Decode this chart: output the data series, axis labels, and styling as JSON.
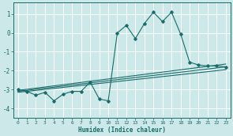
{
  "xlabel": "Humidex (Indice chaleur)",
  "background_color": "#cce8e8",
  "line_color": "#1a6b6b",
  "grid_color": "#b0d0d0",
  "xlim": [
    -0.5,
    23.5
  ],
  "ylim": [
    -4.5,
    1.6
  ],
  "yticks": [
    -4,
    -3,
    -2,
    -1,
    0,
    1
  ],
  "xticks": [
    0,
    1,
    2,
    3,
    4,
    5,
    6,
    7,
    8,
    9,
    10,
    11,
    12,
    13,
    14,
    15,
    16,
    17,
    18,
    19,
    20,
    21,
    22,
    23
  ],
  "main_x": [
    0,
    1,
    2,
    3,
    4,
    5,
    6,
    7,
    8,
    9,
    10,
    11,
    12,
    13,
    14,
    15,
    16,
    17,
    18,
    19,
    20,
    21,
    22,
    23
  ],
  "main_y": [
    -3.0,
    -3.1,
    -3.3,
    -3.15,
    -3.6,
    -3.25,
    -3.1,
    -3.1,
    -2.6,
    -3.5,
    -3.6,
    0.0,
    0.4,
    -0.3,
    0.5,
    1.1,
    0.6,
    1.1,
    -0.05,
    -1.55,
    -1.7,
    -1.75,
    -1.75,
    -1.8
  ],
  "line2_x": [
    0,
    23
  ],
  "line2_y": [
    -3.05,
    -1.65
  ],
  "line3_x": [
    0,
    23
  ],
  "line3_y": [
    -3.1,
    -1.8
  ],
  "line4_x": [
    0,
    23
  ],
  "line4_y": [
    -3.15,
    -1.95
  ]
}
